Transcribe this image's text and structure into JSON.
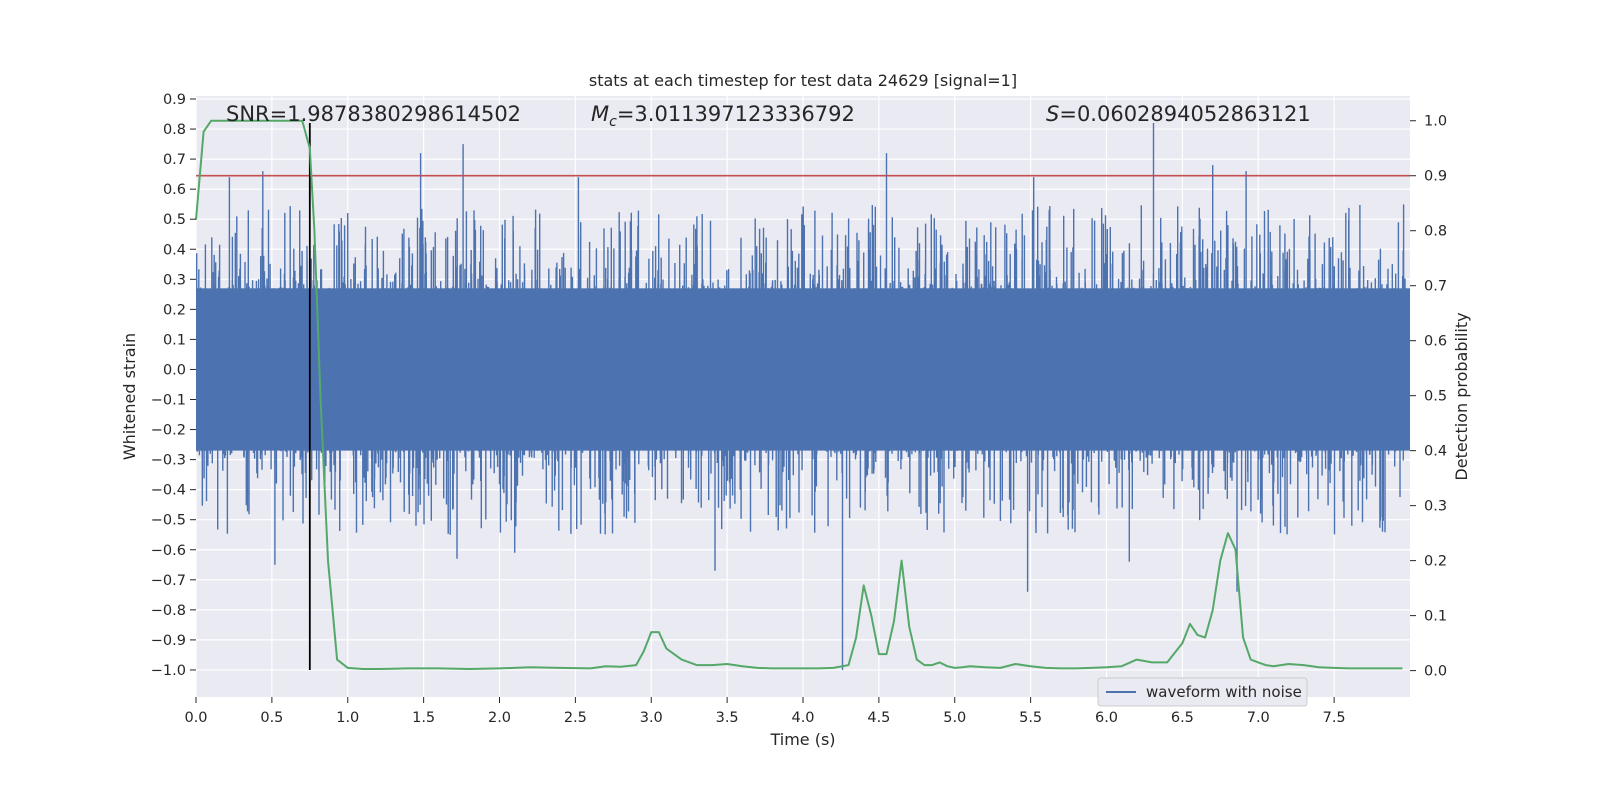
{
  "chart_data": {
    "type": "line",
    "title": "stats at each timestep for test data 24629 [signal=1]",
    "xlabel": "Time (s)",
    "ylabel_left": "Whitened strain",
    "ylabel_right": "Detection probability",
    "xlim": [
      0,
      8.0
    ],
    "ylim_left": [
      -1.09,
      0.91
    ],
    "ylim_right": [
      -0.048,
      1.045
    ],
    "xticks": [
      0.0,
      0.5,
      1.0,
      1.5,
      2.0,
      2.5,
      3.0,
      3.5,
      4.0,
      4.5,
      5.0,
      5.5,
      6.0,
      6.5,
      7.0,
      7.5
    ],
    "xtick_labels": [
      "0.0",
      "0.5",
      "1.0",
      "1.5",
      "2.0",
      "2.5",
      "3.0",
      "3.5",
      "4.0",
      "4.5",
      "5.0",
      "5.5",
      "6.0",
      "6.5",
      "7.0",
      "7.5"
    ],
    "yticks_left": [
      0.9,
      0.8,
      0.7,
      0.6,
      0.5,
      0.4,
      0.3,
      0.2,
      0.1,
      0.0,
      -0.1,
      -0.2,
      -0.3,
      -0.4,
      -0.5,
      -0.6,
      -0.7,
      -0.8,
      -0.9,
      -1.0
    ],
    "ytick_labels_left": [
      "0.9",
      "0.8",
      "0.7",
      "0.6",
      "0.5",
      "0.4",
      "0.3",
      "0.2",
      "0.1",
      "0.0",
      "−0.1",
      "−0.2",
      "−0.3",
      "−0.4",
      "−0.5",
      "−0.6",
      "−0.7",
      "−0.8",
      "−0.9",
      "−1.0"
    ],
    "yticks_right": [
      1.0,
      0.9,
      0.8,
      0.7,
      0.6,
      0.5,
      0.4,
      0.3,
      0.2,
      0.1,
      0.0
    ],
    "ytick_labels_right": [
      "1.0",
      "0.9",
      "0.8",
      "0.7",
      "0.6",
      "0.5",
      "0.4",
      "0.3",
      "0.2",
      "0.1",
      "0.0"
    ],
    "annotations": {
      "snr": "SNR=1.9878380298614502",
      "mc_symbol": "M",
      "mc_sub": "c",
      "mc_value": "=3.011397123336792",
      "s_symbol": "S",
      "s_value": "=0.0602894052863121"
    },
    "legend": {
      "label": "waveform with noise",
      "placement": "lower-right"
    },
    "threshold_right": 0.9,
    "marker_time": 0.75,
    "marker_range_left": [
      -1.0,
      0.82
    ],
    "waveform": {
      "name": "waveform with noise",
      "color": "#4c72b0",
      "dense_band": [
        -0.27,
        0.27
      ],
      "seed": 24629,
      "n_spikes": 1400,
      "highlight_spikes": [
        {
          "t": 0.22,
          "v": 0.64
        },
        {
          "t": 0.44,
          "v": 0.66
        },
        {
          "t": 1.48,
          "v": 0.72
        },
        {
          "t": 1.76,
          "v": 0.75
        },
        {
          "t": 2.52,
          "v": 0.64
        },
        {
          "t": 4.55,
          "v": 0.72
        },
        {
          "t": 5.52,
          "v": 0.64
        },
        {
          "t": 6.31,
          "v": 0.82
        },
        {
          "t": 6.7,
          "v": 0.68
        },
        {
          "t": 6.92,
          "v": 0.66
        },
        {
          "t": 0.52,
          "v": -0.65
        },
        {
          "t": 3.42,
          "v": -0.67
        },
        {
          "t": 4.26,
          "v": -1.0
        },
        {
          "t": 5.48,
          "v": -0.74
        },
        {
          "t": 6.86,
          "v": -0.74
        },
        {
          "t": 1.72,
          "v": -0.63
        },
        {
          "t": 2.1,
          "v": -0.61
        },
        {
          "t": 6.15,
          "v": -0.64
        }
      ]
    },
    "probability": {
      "name": "Detection probability",
      "color": "#55a868",
      "x": [
        0.0,
        0.05,
        0.1,
        0.15,
        0.2,
        0.3,
        0.4,
        0.5,
        0.6,
        0.7,
        0.75,
        0.78,
        0.82,
        0.87,
        0.93,
        1.0,
        1.1,
        1.2,
        1.4,
        1.6,
        1.8,
        2.0,
        2.2,
        2.4,
        2.6,
        2.7,
        2.8,
        2.9,
        2.95,
        3.0,
        3.05,
        3.1,
        3.2,
        3.3,
        3.4,
        3.5,
        3.6,
        3.7,
        3.8,
        3.9,
        4.0,
        4.1,
        4.2,
        4.3,
        4.35,
        4.4,
        4.45,
        4.5,
        4.55,
        4.6,
        4.65,
        4.7,
        4.75,
        4.8,
        4.85,
        4.9,
        4.95,
        5.0,
        5.05,
        5.1,
        5.2,
        5.3,
        5.4,
        5.5,
        5.6,
        5.7,
        5.8,
        5.9,
        6.0,
        6.1,
        6.2,
        6.3,
        6.4,
        6.5,
        6.55,
        6.6,
        6.65,
        6.7,
        6.75,
        6.8,
        6.85,
        6.9,
        6.95,
        7.0,
        7.05,
        7.1,
        7.2,
        7.3,
        7.4,
        7.5,
        7.6,
        7.7,
        7.8,
        7.95
      ],
      "values": [
        0.82,
        0.98,
        1.0,
        1.0,
        1.0,
        1.0,
        1.0,
        1.0,
        1.0,
        1.0,
        0.95,
        0.8,
        0.5,
        0.2,
        0.02,
        0.005,
        0.003,
        0.003,
        0.004,
        0.004,
        0.003,
        0.004,
        0.006,
        0.005,
        0.004,
        0.008,
        0.007,
        0.01,
        0.035,
        0.07,
        0.07,
        0.04,
        0.02,
        0.01,
        0.01,
        0.012,
        0.008,
        0.005,
        0.004,
        0.004,
        0.004,
        0.004,
        0.005,
        0.01,
        0.06,
        0.155,
        0.1,
        0.03,
        0.03,
        0.09,
        0.2,
        0.08,
        0.02,
        0.01,
        0.01,
        0.015,
        0.008,
        0.005,
        0.006,
        0.008,
        0.006,
        0.005,
        0.012,
        0.008,
        0.005,
        0.004,
        0.004,
        0.005,
        0.006,
        0.008,
        0.02,
        0.015,
        0.015,
        0.05,
        0.085,
        0.065,
        0.06,
        0.11,
        0.2,
        0.25,
        0.22,
        0.06,
        0.02,
        0.015,
        0.01,
        0.008,
        0.012,
        0.01,
        0.006,
        0.005,
        0.004,
        0.004,
        0.004,
        0.004
      ]
    },
    "colors": {
      "background": "#eaeaf2",
      "grid": "#ffffff",
      "threshold": "#c44e52",
      "marker": "#000000",
      "waveform": "#4c72b0",
      "probability": "#55a868",
      "text": "#262626"
    }
  }
}
